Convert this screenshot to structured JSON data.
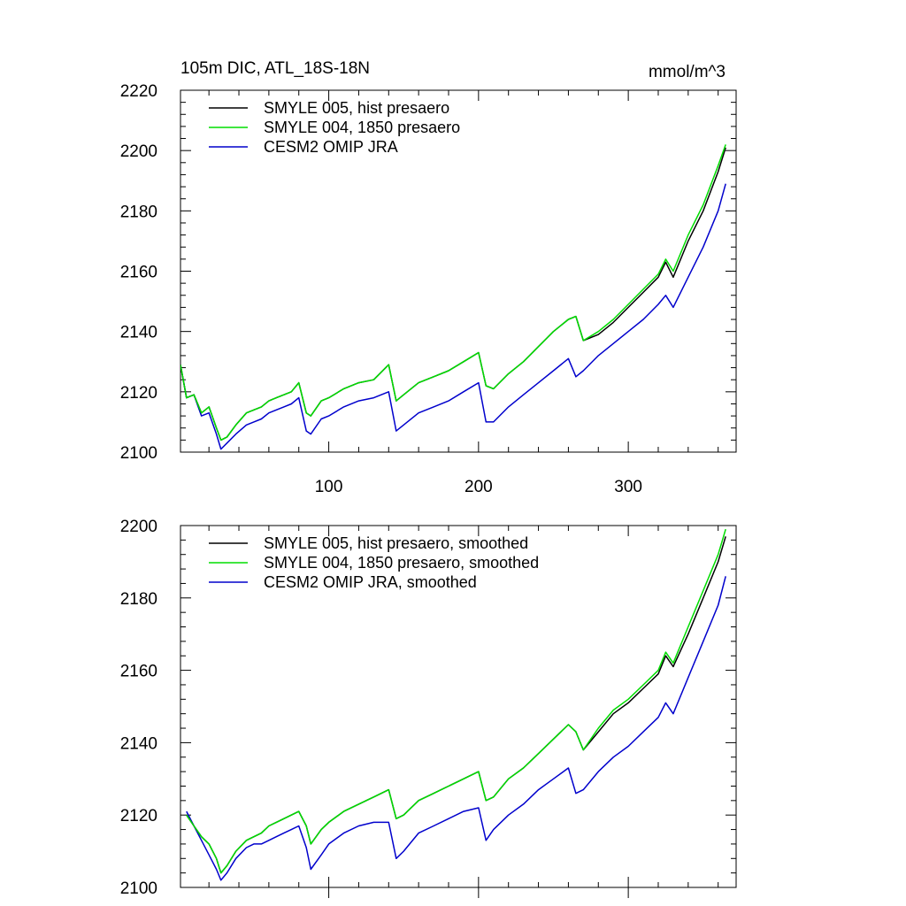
{
  "figure": {
    "title_left": "105m DIC, ATL_18S-18N",
    "title_right": "mmol/m^3"
  },
  "chart_data": [
    {
      "type": "line",
      "title": "105m DIC, ATL_18S-18N",
      "units": "mmol/m^3",
      "xlim": [
        1,
        372
      ],
      "ylim": [
        2100,
        2220
      ],
      "x_ticks": [
        100,
        200,
        300
      ],
      "x_tick_labels": [
        "100",
        "200",
        "300"
      ],
      "y_ticks": [
        2100,
        2120,
        2140,
        2160,
        2180,
        2200,
        2220
      ],
      "y_tick_labels": [
        "2100",
        "2120",
        "2140",
        "2160",
        "2180",
        "2200",
        "2220"
      ],
      "legend_position": "top-left",
      "x": [
        1,
        5,
        10,
        15,
        20,
        25,
        28,
        32,
        38,
        45,
        50,
        55,
        60,
        65,
        70,
        75,
        80,
        85,
        88,
        95,
        100,
        110,
        120,
        130,
        140,
        145,
        150,
        160,
        170,
        180,
        190,
        200,
        205,
        210,
        220,
        230,
        240,
        250,
        260,
        265,
        270,
        280,
        290,
        300,
        310,
        320,
        325,
        330,
        340,
        350,
        360,
        365
      ],
      "series": [
        {
          "name": "SMYLE 005, hist presaero",
          "color": "#000000",
          "values": [
            2129,
            2118,
            2119,
            2113,
            2115,
            2108,
            2104,
            2105,
            2109,
            2113,
            2114,
            2115,
            2117,
            2118,
            2119,
            2120,
            2123,
            2113,
            2112,
            2117,
            2118,
            2121,
            2123,
            2124,
            2129,
            2117,
            2119,
            2123,
            2125,
            2127,
            2130,
            2133,
            2122,
            2121,
            2126,
            2130,
            2135,
            2140,
            2144,
            2145,
            2137,
            2139,
            2143,
            2148,
            2153,
            2158,
            2163,
            2158,
            2170,
            2180,
            2193,
            2201
          ]
        },
        {
          "name": "SMYLE 004, 1850 presaero",
          "color": "#00dd00",
          "values": [
            2129,
            2118,
            2119,
            2113,
            2115,
            2108,
            2104,
            2105,
            2109,
            2113,
            2114,
            2115,
            2117,
            2118,
            2119,
            2120,
            2123,
            2113,
            2112,
            2117,
            2118,
            2121,
            2123,
            2124,
            2129,
            2117,
            2119,
            2123,
            2125,
            2127,
            2130,
            2133,
            2122,
            2121,
            2126,
            2130,
            2135,
            2140,
            2144,
            2145,
            2137,
            2140,
            2144,
            2149,
            2154,
            2159,
            2164,
            2160,
            2172,
            2182,
            2195,
            2202
          ]
        },
        {
          "name": "CESM2 OMIP JRA",
          "color": "#0000cc",
          "values": [
            2129,
            2118,
            2119,
            2112,
            2113,
            2106,
            2101,
            2103,
            2106,
            2109,
            2110,
            2111,
            2113,
            2114,
            2115,
            2116,
            2118,
            2107,
            2106,
            2111,
            2112,
            2115,
            2117,
            2118,
            2120,
            2107,
            2109,
            2113,
            2115,
            2117,
            2120,
            2123,
            2110,
            2110,
            2115,
            2119,
            2123,
            2127,
            2131,
            2125,
            2127,
            2132,
            2136,
            2140,
            2144,
            2149,
            2152,
            2148,
            2158,
            2168,
            2180,
            2189
          ]
        }
      ]
    },
    {
      "type": "line",
      "ylim": [
        2100,
        2200
      ],
      "xlim": [
        1,
        372
      ],
      "y_ticks": [
        2100,
        2120,
        2140,
        2160,
        2180,
        2200
      ],
      "y_tick_labels": [
        "2100",
        "2120",
        "2140",
        "2160",
        "2180",
        "2200"
      ],
      "legend_position": "top-left",
      "x": [
        5,
        10,
        15,
        20,
        25,
        28,
        32,
        38,
        45,
        50,
        55,
        60,
        65,
        70,
        75,
        80,
        85,
        88,
        95,
        100,
        110,
        120,
        130,
        140,
        145,
        150,
        160,
        170,
        180,
        190,
        200,
        205,
        210,
        220,
        230,
        240,
        250,
        260,
        265,
        270,
        280,
        290,
        300,
        310,
        320,
        325,
        330,
        340,
        350,
        360,
        365
      ],
      "series": [
        {
          "name": "SMYLE 005, hist presaero, smoothed",
          "color": "#000000",
          "values": [
            2120,
            2117,
            2114,
            2112,
            2108,
            2104,
            2106,
            2110,
            2113,
            2114,
            2115,
            2117,
            2118,
            2119,
            2120,
            2121,
            2117,
            2112,
            2116,
            2118,
            2121,
            2123,
            2125,
            2127,
            2119,
            2120,
            2124,
            2126,
            2128,
            2130,
            2132,
            2124,
            2125,
            2130,
            2133,
            2137,
            2141,
            2145,
            2143,
            2138,
            2143,
            2148,
            2151,
            2155,
            2159,
            2164,
            2161,
            2170,
            2180,
            2190,
            2197
          ]
        },
        {
          "name": "SMYLE 004, 1850 presaero, smoothed",
          "color": "#00dd00",
          "values": [
            2120,
            2117,
            2114,
            2112,
            2108,
            2104,
            2106,
            2110,
            2113,
            2114,
            2115,
            2117,
            2118,
            2119,
            2120,
            2121,
            2117,
            2112,
            2116,
            2118,
            2121,
            2123,
            2125,
            2127,
            2119,
            2120,
            2124,
            2126,
            2128,
            2130,
            2132,
            2124,
            2125,
            2130,
            2133,
            2137,
            2141,
            2145,
            2143,
            2138,
            2144,
            2149,
            2152,
            2156,
            2160,
            2165,
            2162,
            2172,
            2182,
            2192,
            2199
          ]
        },
        {
          "name": "CESM2 OMIP JRA, smoothed",
          "color": "#0000cc",
          "values": [
            2121,
            2117,
            2113,
            2109,
            2105,
            2102,
            2104,
            2108,
            2111,
            2112,
            2112,
            2113,
            2114,
            2115,
            2116,
            2117,
            2111,
            2105,
            2109,
            2112,
            2115,
            2117,
            2118,
            2118,
            2108,
            2110,
            2115,
            2117,
            2119,
            2121,
            2122,
            2113,
            2116,
            2120,
            2123,
            2127,
            2130,
            2133,
            2126,
            2127,
            2132,
            2136,
            2139,
            2143,
            2147,
            2151,
            2148,
            2158,
            2168,
            2178,
            2186
          ]
        }
      ]
    }
  ]
}
